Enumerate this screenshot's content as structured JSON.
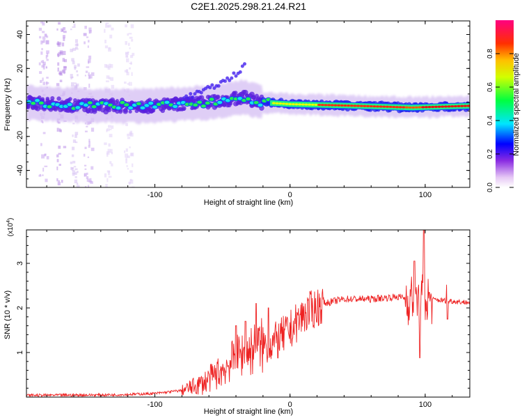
{
  "figure": {
    "title": "C2E1.2025.298.21.24.R21"
  },
  "chart_data": [
    {
      "type": "heatmap",
      "xlabel": "Height of straight line (km)",
      "ylabel": "Frequency (Hz)",
      "xlim": [
        -195,
        133
      ],
      "ylim": [
        -50,
        48
      ],
      "xticks": [
        -100,
        0,
        100
      ],
      "yticks": [
        -40,
        -20,
        0,
        20,
        40
      ],
      "colorbar": {
        "label": "Normalized spectral amplitude",
        "range": [
          0,
          1
        ],
        "ticks": [
          "0.0",
          "0.2",
          "0.4",
          "0.6",
          "0.8"
        ]
      },
      "ridge": [
        {
          "x": -195,
          "y": 0
        },
        {
          "x": -150,
          "y": -2
        },
        {
          "x": -100,
          "y": -2
        },
        {
          "x": -60,
          "y": 0
        },
        {
          "x": -35,
          "y": 3
        },
        {
          "x": -20,
          "y": 0
        },
        {
          "x": 0,
          "y": -1
        },
        {
          "x": 50,
          "y": -2
        },
        {
          "x": 90,
          "y": -3
        },
        {
          "x": 133,
          "y": -2
        }
      ],
      "branch": [
        {
          "x": -80,
          "y": 2
        },
        {
          "x": -60,
          "y": 8
        },
        {
          "x": -45,
          "y": 14
        },
        {
          "x": -35,
          "y": 20
        },
        {
          "x": -33,
          "y": 22
        }
      ]
    },
    {
      "type": "line",
      "xlabel": "Height of straight line (km)",
      "ylabel": "SNR (10 * v/v)",
      "yscale_label": "(x10",
      "yscale_exp": "4",
      "yscale_close": ")",
      "xlim": [
        -195,
        133
      ],
      "ylim": [
        0,
        3.75
      ],
      "xticks": [
        -100,
        0,
        100
      ],
      "yticks": [
        1,
        2,
        3
      ],
      "series": [
        {
          "color": "#ee2222",
          "envelope": [
            {
              "x": -195,
              "y": 0.04
            },
            {
              "x": -130,
              "y": 0.05
            },
            {
              "x": -100,
              "y": 0.08
            },
            {
              "x": -80,
              "y": 0.15
            },
            {
              "x": -65,
              "y": 0.3
            },
            {
              "x": -50,
              "y": 0.6
            },
            {
              "x": -40,
              "y": 0.9
            },
            {
              "x": -25,
              "y": 1.1
            },
            {
              "x": -10,
              "y": 1.25
            },
            {
              "x": 0,
              "y": 1.5
            },
            {
              "x": 10,
              "y": 1.85
            },
            {
              "x": 25,
              "y": 2.1
            },
            {
              "x": 40,
              "y": 2.2
            },
            {
              "x": 60,
              "y": 2.2
            },
            {
              "x": 80,
              "y": 2.25
            },
            {
              "x": 90,
              "y": 2.2
            },
            {
              "x": 100,
              "y": 2.2
            },
            {
              "x": 133,
              "y": 2.12
            }
          ],
          "spikes": [
            {
              "x": -40,
              "y": 1.6
            },
            {
              "x": -33,
              "y": 1.7
            },
            {
              "x": -25,
              "y": 2.1
            },
            {
              "x": -16,
              "y": 2.0
            },
            {
              "x": 92,
              "y": 3.05
            },
            {
              "x": 96,
              "y": 0.88
            },
            {
              "x": 99,
              "y": 3.75
            },
            {
              "x": 103,
              "y": 2.35
            },
            {
              "x": 116,
              "y": 2.52
            },
            {
              "x": 116.5,
              "y": 1.75
            }
          ]
        }
      ]
    }
  ]
}
